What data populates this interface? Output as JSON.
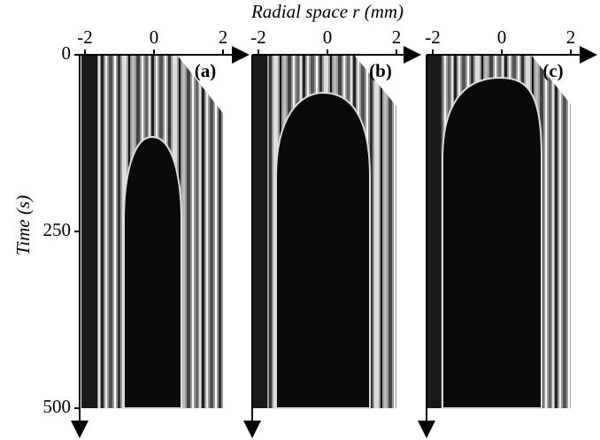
{
  "x_axis": {
    "label": "Radial space r (mm)",
    "ticks": [
      -2,
      0,
      2
    ]
  },
  "y_axis": {
    "label": "Time (s)",
    "ticks": [
      0,
      250,
      500
    ]
  },
  "panels": [
    {
      "label": "(a)"
    },
    {
      "label": "(b)"
    },
    {
      "label": "(c)"
    }
  ]
}
